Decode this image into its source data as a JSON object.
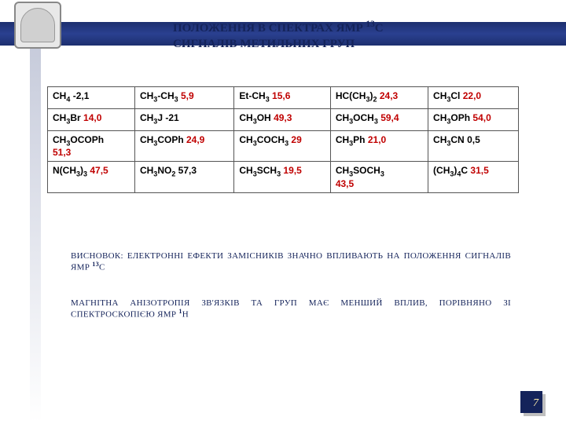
{
  "title_line1": "ПОЛОЖЕННЯ В СПЕКТРАХ ЯМР ",
  "title_sup1": "13",
  "title_line1b": "С",
  "title_line2": "СИГНАЛІВ МЕТИЛЬНИХ ГРУП",
  "table": {
    "rows": [
      [
        {
          "chem": "CH",
          "sub": "4",
          "val": "-2,1",
          "valClass": "blk"
        },
        {
          "chem": "CH",
          "sub": "3",
          "chem2": "-CH",
          "sub2": "3",
          "val": "5,9",
          "valClass": "red"
        },
        {
          "chem": "Et-CH",
          "sub": "3",
          "val": "15,6",
          "valClass": "red"
        },
        {
          "chem": "HC(CH",
          "sub": "3",
          "chem2": ")",
          "sub2": "2",
          "val": "24,3",
          "valClass": "red"
        },
        {
          "chem": "CH",
          "sub": "3",
          "chem2": "Cl",
          "val": "22,0",
          "valClass": "red"
        }
      ],
      [
        {
          "chem": "CH",
          "sub": "3",
          "chem2": "Br",
          "val": "14,0",
          "valClass": "red"
        },
        {
          "chem": "CH",
          "sub": "3",
          "chem2": "J",
          "val": "-21",
          "valClass": "blk"
        },
        {
          "chem": "CH",
          "sub": "3",
          "chem2": "OH",
          "val": "49,3",
          "valClass": "red"
        },
        {
          "chem": "CH",
          "sub": "3",
          "chem2": "OCH",
          "sub2": "3",
          "val": "59,4",
          "valClass": "red"
        },
        {
          "chem": "CH",
          "sub": "3",
          "chem2": "OPh",
          "val": "54,0",
          "valClass": "red"
        }
      ],
      [
        {
          "chem": "CH",
          "sub": "3",
          "chem2": "OCOPh",
          "val": "51,3",
          "valClass": "red",
          "wrap": true
        },
        {
          "chem": "CH",
          "sub": "3",
          "chem2": "COPh",
          "val": "24,9",
          "valClass": "red"
        },
        {
          "chem": "CH",
          "sub": "3",
          "chem2": "COCH",
          "sub2": "3",
          "val": "29",
          "valClass": "red"
        },
        {
          "chem": "CH",
          "sub": "3",
          "chem2": "Ph",
          "val": "21,0",
          "valClass": "red"
        },
        {
          "chem": "CH",
          "sub": "3",
          "chem2": "CN",
          "val": "0,5",
          "valClass": "blk"
        }
      ],
      [
        {
          "chem": "N(CH",
          "sub": "3",
          "chem2": ")",
          "sub2": "3",
          "val": "47,5",
          "valClass": "red"
        },
        {
          "chem": "CH",
          "sub": "3",
          "chem2": "NO",
          "sub2": "2",
          "val": "57,3",
          "valClass": "blk"
        },
        {
          "chem": "CH",
          "sub": "3",
          "chem2": "SCH",
          "sub2": "3",
          "val": "19,5",
          "valClass": "red"
        },
        {
          "chem": "CH",
          "sub": "3",
          "chem2": "SOCH",
          "sub2": "3",
          "val": "43,5",
          "valClass": "red",
          "wrap": true
        },
        {
          "chem": "(CH",
          "sub": "3",
          "chem2": ")",
          "sub2": "4",
          "chem3": "C",
          "val": "31,5",
          "valClass": "red"
        }
      ]
    ],
    "col_widths": [
      "20%",
      "20%",
      "20%",
      "20%",
      "20%"
    ],
    "border_color": "#555",
    "font_size": 12
  },
  "conclusion1_a": "ВИСНОВОК: ЕЛЕКТРОННІ ЕФЕКТИ ЗАМІСНИКІВ ЗНАЧНО ВПЛИВАЮТЬ НА ПОЛОЖЕННЯ СИГНАЛІВ ЯМР ",
  "conclusion1_sup": "13",
  "conclusion1_b": "С",
  "conclusion2_a": "МАГНІТНА АНІЗОТРОПІЯ ЗВ'ЯЗКІВ ТА ГРУП МАЄ МЕНШИЙ ВПЛИВ, ПОРІВНЯНО ЗІ СПЕКТРОСКОПІЄЮ ЯМР ",
  "conclusion2_sup": "1",
  "conclusion2_b": "Н",
  "page_number": "7",
  "colors": {
    "title": "#14235a",
    "red": "#c00000",
    "band": "#1d2f6f",
    "page_box": "#14235a",
    "page_num": "#ffeeaa"
  }
}
